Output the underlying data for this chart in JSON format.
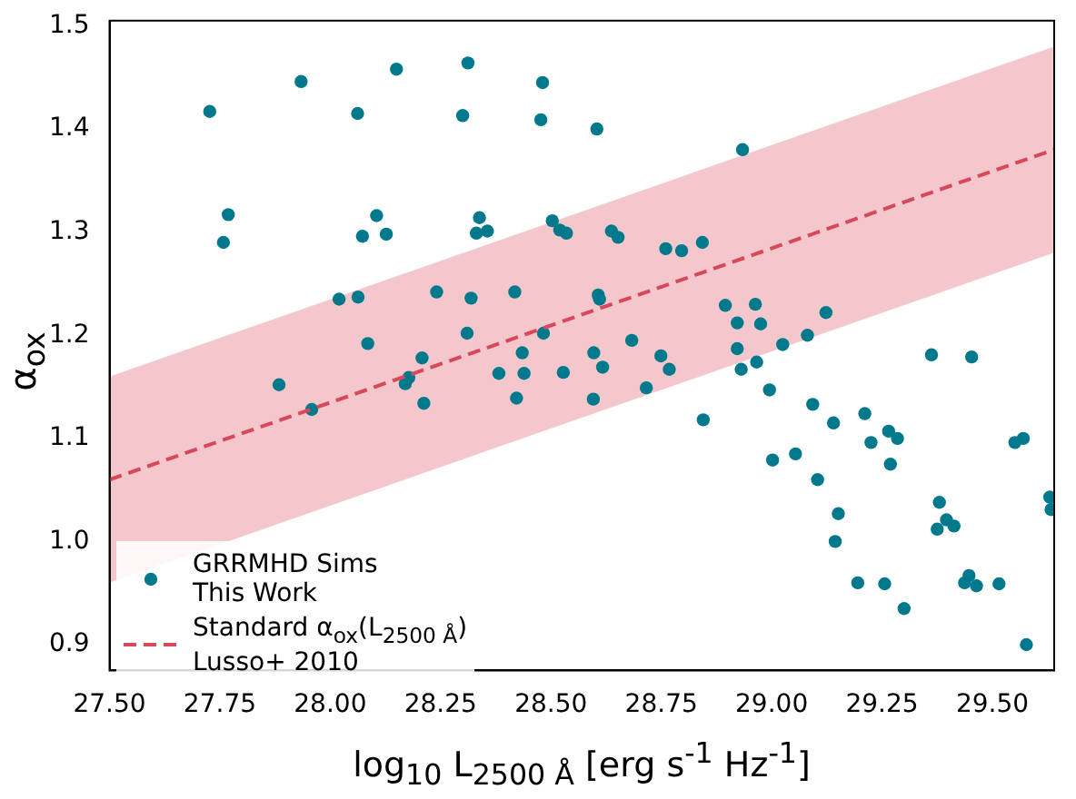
{
  "chart_data": {
    "type": "scatter",
    "xlabel": "log$_{10}$  L$_{2500 Å}$ [erg s$^{-1}$ Hz$^{-1}$]",
    "ylabel": "α$_{ox}$",
    "xlim": [
      27.5,
      29.64
    ],
    "ylim": [
      0.875,
      1.505
    ],
    "xticks": [
      {
        "value": 27.5,
        "label": "27.50"
      },
      {
        "value": 27.75,
        "label": "27.75"
      },
      {
        "value": 28,
        "label": "28.00"
      },
      {
        "value": 28.25,
        "label": "28.25"
      },
      {
        "value": 28.5,
        "label": "28.50"
      },
      {
        "value": 28.75,
        "label": "28.75"
      },
      {
        "value": 29,
        "label": "29.00"
      },
      {
        "value": 29.25,
        "label": "29.25"
      },
      {
        "value": 29.5,
        "label": "29.50"
      }
    ],
    "yticks": [
      0.9,
      {
        "value": 1.0,
        "label": "1.0"
      },
      1.1,
      1.2,
      1.3,
      1.4,
      1.5
    ],
    "grid": false,
    "legend": "bottom left",
    "series": [
      {
        "name": "GRRMHD Sims\nThis Work",
        "type": "scatter",
        "marker": "circle",
        "color": "#00798c",
        "x": [
          27.727,
          27.934,
          28.15,
          28.312,
          28.481,
          28.062,
          28.3,
          28.477,
          27.769,
          27.758,
          28.105,
          28.073,
          28.127,
          28.338,
          28.331,
          28.356,
          28.503,
          28.52,
          28.535,
          28.02,
          28.063,
          28.241,
          28.319,
          28.418,
          28.085,
          28.31,
          28.483,
          28.435,
          28.604,
          28.934,
          28.637,
          28.652,
          28.76,
          28.796,
          28.843,
          28.607,
          28.61,
          28.895,
          28.963,
          28.922,
          28.975,
          29.123,
          28.683,
          28.597,
          28.749,
          28.922,
          29.025,
          29.081,
          29.362,
          29.453,
          27.884,
          27.958,
          28.208,
          28.178,
          28.17,
          28.212,
          28.382,
          28.439,
          28.422,
          28.528,
          28.617,
          28.596,
          28.768,
          28.716,
          28.931,
          28.966,
          28.995,
          28.845,
          29.093,
          29.14,
          29.211,
          29.225,
          29.265,
          29.285,
          29.269,
          29.002,
          29.054,
          29.104,
          29.551,
          29.57,
          29.63,
          29.633,
          29.38,
          29.396,
          29.413,
          29.375,
          29.151,
          29.144,
          29.195,
          29.256,
          29.3,
          29.437,
          29.447,
          29.464,
          29.515,
          29.577
        ],
        "values": [
          1.417,
          1.446,
          1.458,
          1.464,
          1.445,
          1.415,
          1.413,
          1.409,
          1.317,
          1.29,
          1.316,
          1.296,
          1.298,
          1.314,
          1.299,
          1.301,
          1.311,
          1.302,
          1.299,
          1.235,
          1.237,
          1.242,
          1.236,
          1.242,
          1.192,
          1.202,
          1.202,
          1.183,
          1.4,
          1.38,
          1.301,
          1.295,
          1.284,
          1.282,
          1.29,
          1.239,
          1.235,
          1.229,
          1.23,
          1.212,
          1.211,
          1.222,
          1.195,
          1.183,
          1.18,
          1.187,
          1.191,
          1.2,
          1.181,
          1.179,
          1.152,
          1.128,
          1.178,
          1.159,
          1.153,
          1.134,
          1.163,
          1.163,
          1.139,
          1.164,
          1.169,
          1.138,
          1.167,
          1.149,
          1.167,
          1.174,
          1.147,
          1.118,
          1.133,
          1.115,
          1.124,
          1.096,
          1.107,
          1.1,
          1.075,
          1.079,
          1.085,
          1.06,
          1.096,
          1.1,
          1.043,
          1.031,
          1.038,
          1.021,
          1.015,
          1.012,
          1.027,
          1,
          0.96,
          0.959,
          0.935,
          0.96,
          0.967,
          0.957,
          0.959,
          0.9
        ]
      },
      {
        "name": "Standard α$_{ox}$(L$_{2500 Å}$)\nLusso+ 2010",
        "type": "line",
        "marker": "none",
        "line_style": "dashed",
        "color": "#d9475a",
        "x": [
          27.5,
          29.64
        ],
        "values": [
          1.06,
          1.38
        ],
        "lower": [
          0.96,
          1.28
        ],
        "upper": [
          1.16,
          1.48
        ]
      }
    ]
  }
}
